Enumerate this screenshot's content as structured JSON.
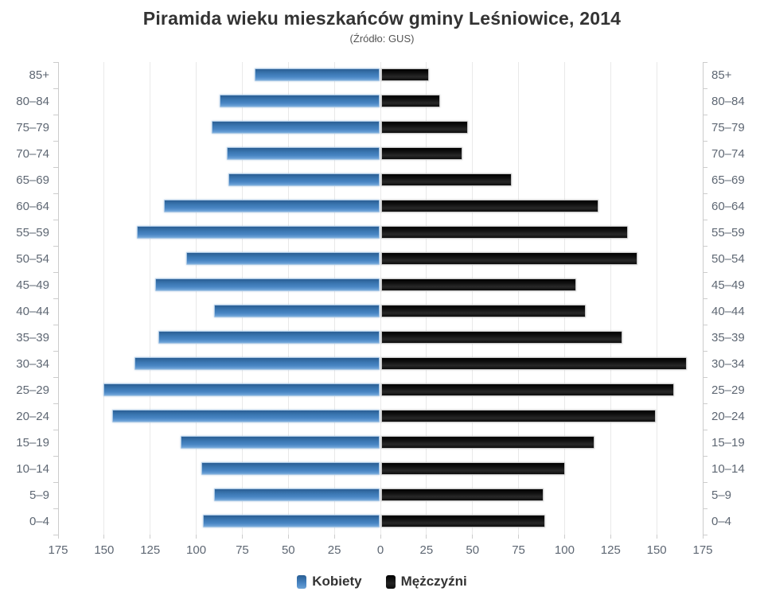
{
  "chart": {
    "title": "Piramida wieku mieszkańców gminy Leśniowice, 2014",
    "subtitle": "(Źródło: GUS)"
  },
  "legend": {
    "women": "Kobiety",
    "men": "Mężczyźni"
  },
  "chart_data": {
    "type": "bar",
    "variant": "population-pyramid",
    "title": "Piramida wieku mieszkańców gminy Leśniowice, 2014",
    "subtitle": "(Źródło: GUS)",
    "categories": [
      "85+",
      "80–84",
      "75–79",
      "70–74",
      "65–69",
      "60–64",
      "55–59",
      "50–54",
      "45–49",
      "40–44",
      "35–39",
      "30–34",
      "25–29",
      "20–24",
      "15–19",
      "10–14",
      "5–9",
      "0–4"
    ],
    "series": [
      {
        "name": "Kobiety",
        "side": "left",
        "color": "#4080bf",
        "values": [
          68,
          87,
          91,
          83,
          82,
          117,
          132,
          105,
          122,
          90,
          120,
          133,
          150,
          145,
          108,
          97,
          90,
          96
        ]
      },
      {
        "name": "Mężczyźni",
        "side": "right",
        "color": "#1a1a1a",
        "values": [
          26,
          32,
          47,
          44,
          71,
          118,
          134,
          139,
          106,
          111,
          131,
          166,
          159,
          149,
          116,
          100,
          88,
          89
        ]
      }
    ],
    "xlim": [
      0,
      175
    ],
    "x_tick_step": 25,
    "x_tick_labels": [
      "175",
      "150",
      "125",
      "100",
      "75",
      "50",
      "25",
      "0",
      "25",
      "50",
      "75",
      "100",
      "125",
      "150",
      "175"
    ],
    "grid": true,
    "axis_label_color": "#5e6773",
    "legend_position": "bottom"
  }
}
